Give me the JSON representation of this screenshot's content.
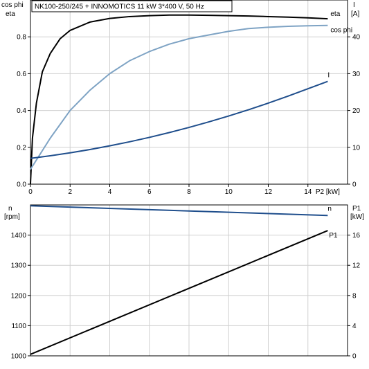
{
  "header": {
    "title": "NK100-250/245 + INNOMOTICS   11 kW   3*400 V, 50 Hz"
  },
  "colors": {
    "eta": "#000000",
    "cos_phi": "#7ea3c4",
    "I": "#1f4e8c",
    "n": "#1f4e8c",
    "P1": "#000000",
    "grid": "#d0d0d0"
  },
  "chart_data": [
    {
      "type": "line",
      "id": "top",
      "xlabel": "P2 [kW]",
      "ylabel_left": [
        "cos phi",
        "eta"
      ],
      "ylabel_right": [
        "I",
        "[A]"
      ],
      "xlim": [
        0,
        15
      ],
      "ylim_left": [
        0,
        1.0
      ],
      "ylim_right": [
        0,
        50
      ],
      "xticks": [
        "0",
        "2",
        "4",
        "6",
        "8",
        "10",
        "12",
        "14"
      ],
      "yticks_left": [
        "0.0",
        "0.2",
        "0.4",
        "0.6",
        "0.8"
      ],
      "yticks_right": [
        "0",
        "10",
        "20",
        "30",
        "40"
      ],
      "grid": true,
      "series": [
        {
          "name": "eta",
          "axis": "left",
          "color": "#000000",
          "label": "eta",
          "x": [
            0,
            0.1,
            0.3,
            0.6,
            1.0,
            1.5,
            2.0,
            3.0,
            4.0,
            5.0,
            6.0,
            7.0,
            8.0,
            9.0,
            10.0,
            11.0,
            12.0,
            13.0,
            14.0,
            15.0
          ],
          "y": [
            0,
            0.25,
            0.44,
            0.61,
            0.71,
            0.79,
            0.835,
            0.88,
            0.9,
            0.91,
            0.915,
            0.918,
            0.918,
            0.917,
            0.915,
            0.913,
            0.91,
            0.907,
            0.903,
            0.898
          ]
        },
        {
          "name": "cos phi",
          "axis": "left",
          "color": "#7ea3c4",
          "label": "cos phi",
          "x": [
            0,
            1,
            2,
            3,
            4,
            5,
            6,
            7,
            8,
            9,
            10,
            11,
            12,
            13,
            14,
            15
          ],
          "y": [
            0.08,
            0.25,
            0.4,
            0.51,
            0.6,
            0.67,
            0.72,
            0.76,
            0.79,
            0.81,
            0.83,
            0.845,
            0.852,
            0.857,
            0.86,
            0.862
          ]
        },
        {
          "name": "I",
          "axis": "right",
          "color": "#1f4e8c",
          "label": "I",
          "x": [
            0,
            1,
            2,
            3,
            4,
            5,
            6,
            7,
            8,
            9,
            10,
            11,
            12,
            13,
            14,
            15
          ],
          "y": [
            7.0,
            7.7,
            8.5,
            9.4,
            10.4,
            11.5,
            12.7,
            14.0,
            15.4,
            16.9,
            18.5,
            20.2,
            22.0,
            23.9,
            25.9,
            27.9
          ]
        }
      ]
    },
    {
      "type": "line",
      "id": "bottom",
      "ylabel_left": [
        "n",
        "[rpm]"
      ],
      "ylabel_right": [
        "P1",
        "[kW]"
      ],
      "xlim": [
        0,
        15
      ],
      "ylim_left": [
        1000,
        1500
      ],
      "ylim_right": [
        0,
        20
      ],
      "yticks_left": [
        "1000",
        "1100",
        "1200",
        "1300",
        "1400"
      ],
      "yticks_right": [
        "0",
        "4",
        "8",
        "12",
        "16"
      ],
      "grid": true,
      "series": [
        {
          "name": "n",
          "axis": "left",
          "color": "#1f4e8c",
          "label": "n",
          "x": [
            0,
            15
          ],
          "y": [
            1497,
            1465
          ]
        },
        {
          "name": "P1",
          "axis": "right",
          "color": "#000000",
          "label": "P1",
          "x": [
            0,
            15
          ],
          "y": [
            0.2,
            16.6
          ]
        }
      ]
    }
  ]
}
